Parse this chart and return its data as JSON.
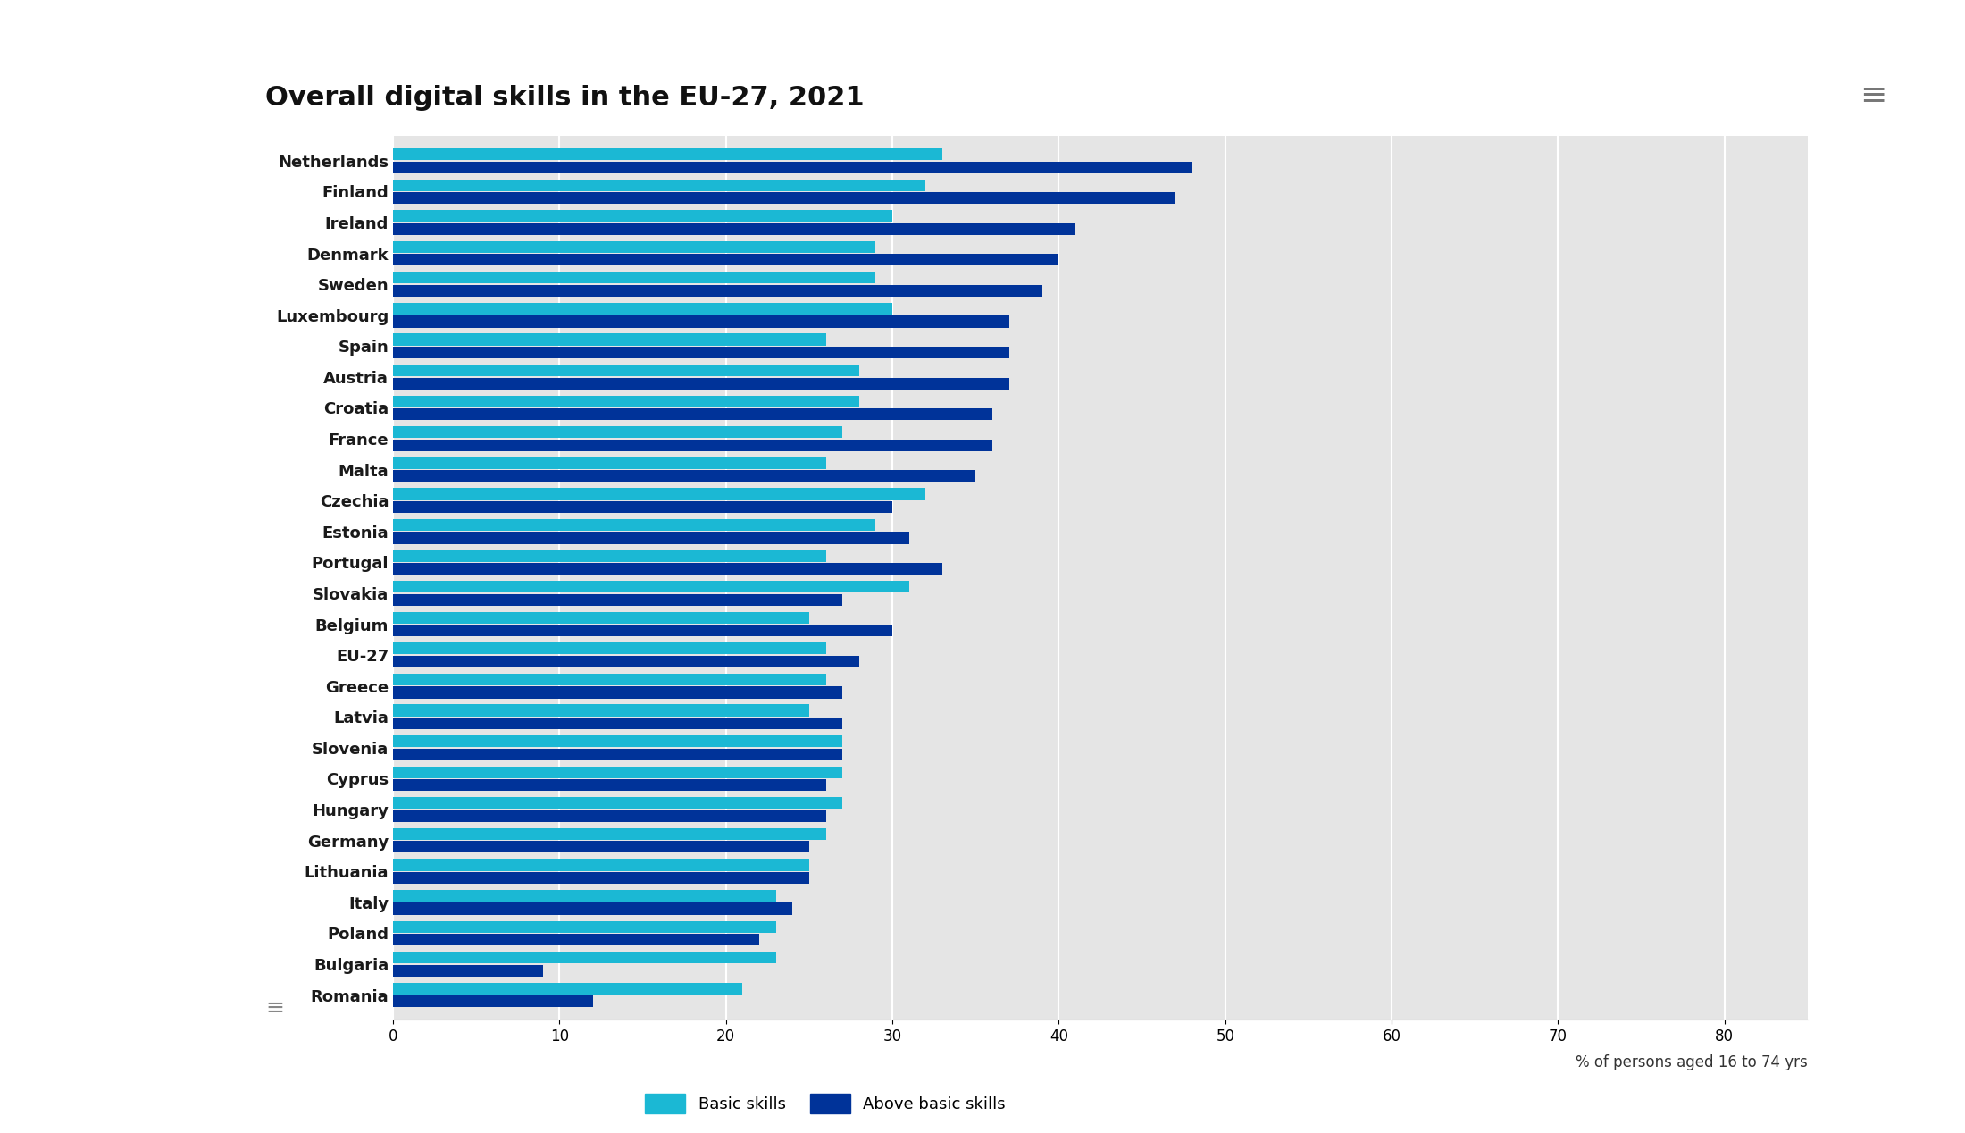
{
  "title": "Overall digital skills in the EU-27, 2021",
  "countries": [
    "Netherlands",
    "Finland",
    "Ireland",
    "Denmark",
    "Sweden",
    "Luxembourg",
    "Spain",
    "Austria",
    "Croatia",
    "France",
    "Malta",
    "Czechia",
    "Estonia",
    "Portugal",
    "Slovakia",
    "Belgium",
    "EU-27",
    "Greece",
    "Latvia",
    "Slovenia",
    "Cyprus",
    "Hungary",
    "Germany",
    "Lithuania",
    "Italy",
    "Poland",
    "Bulgaria",
    "Romania"
  ],
  "basic": [
    33,
    32,
    30,
    29,
    29,
    30,
    26,
    28,
    28,
    27,
    26,
    32,
    29,
    26,
    31,
    25,
    26,
    26,
    25,
    27,
    27,
    27,
    26,
    25,
    23,
    23,
    23,
    21
  ],
  "above_basic": [
    48,
    47,
    41,
    40,
    39,
    37,
    37,
    37,
    36,
    36,
    35,
    30,
    31,
    33,
    27,
    30,
    28,
    27,
    27,
    27,
    26,
    26,
    25,
    25,
    24,
    22,
    9,
    12
  ],
  "basic_color": "#1BB8D4",
  "above_basic_color": "#003399",
  "background_color": "#ffffff",
  "chart_bg_color": "#e5e5e5",
  "left_panel_color": "#ebebeb",
  "xlabel": "% of persons aged 16 to 74 yrs",
  "xlim_max": 85,
  "xticks": [
    0,
    10,
    20,
    30,
    40,
    50,
    60,
    70,
    80
  ],
  "legend_basic": "Basic skills",
  "legend_above": "Above basic skills",
  "title_fontsize": 22,
  "label_fontsize": 12,
  "tick_fontsize": 12,
  "country_fontsize": 13
}
